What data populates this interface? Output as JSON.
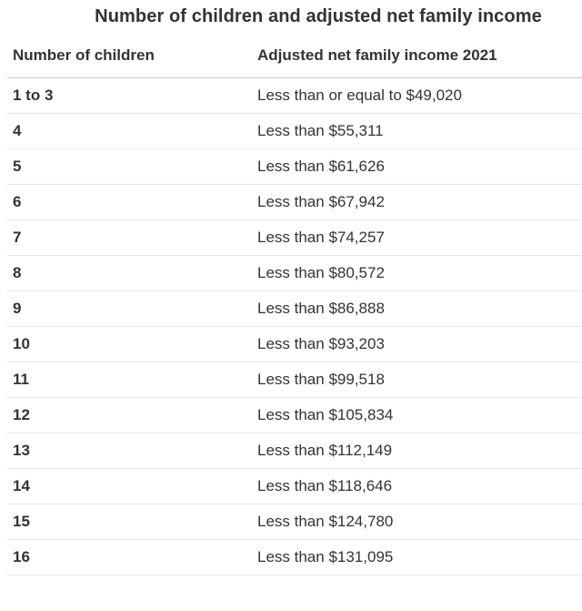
{
  "chart_data": {
    "type": "table",
    "title": "Number of children and adjusted net family income",
    "columns": [
      "Number of children",
      "Adjusted net family income 2021"
    ],
    "rows": [
      [
        "1 to 3",
        "Less than or equal to $49,020"
      ],
      [
        "4",
        "Less than $55,311"
      ],
      [
        "5",
        "Less than $61,626"
      ],
      [
        "6",
        "Less than $67,942"
      ],
      [
        "7",
        "Less than $74,257"
      ],
      [
        "8",
        "Less than $80,572"
      ],
      [
        "9",
        "Less than $86,888"
      ],
      [
        "10",
        "Less than $93,203"
      ],
      [
        "11",
        "Less than $99,518"
      ],
      [
        "12",
        "Less than $105,834"
      ],
      [
        "13",
        "Less than $112,149"
      ],
      [
        "14",
        "Less than $118,646"
      ],
      [
        "15",
        "Less than $124,780"
      ],
      [
        "16",
        "Less than $131,095"
      ]
    ],
    "layout": {
      "legend": "none",
      "grid": "horizontal-row-separators"
    }
  },
  "colors": {
    "text": "#333333",
    "header_border": "#c9c9c9",
    "row_border": "#e7e7e7",
    "background": "#ffffff"
  }
}
